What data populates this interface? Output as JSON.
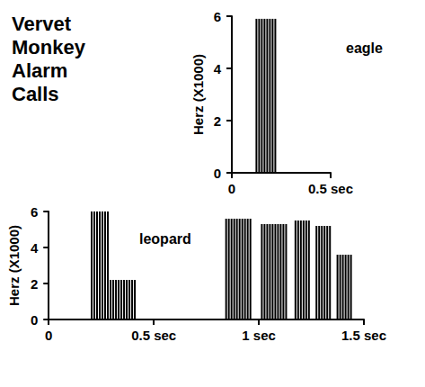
{
  "title": "Vervet Monkey Alarm Calls",
  "chart_data": [
    {
      "type": "spectrogram",
      "title": "eagle",
      "ylabel": "Herz (X1000)",
      "xlim": [
        0,
        0.5
      ],
      "xticks": [
        0,
        {
          "value": 0.5,
          "label": "0.5 sec"
        }
      ],
      "ylim": [
        0,
        6
      ],
      "yticks": [
        0,
        2,
        4,
        6
      ],
      "grid": false,
      "color": "#000000",
      "bursts": [
        {
          "start": 0.12,
          "end": 0.23,
          "low": 0,
          "high": 5.9
        }
      ]
    },
    {
      "type": "spectrogram",
      "title": "leopard",
      "ylabel": "Herz (X1000)",
      "xlim": [
        0,
        1.5
      ],
      "xticks": [
        0,
        {
          "value": 0.5,
          "label": "0.5 sec"
        },
        {
          "value": 1,
          "label": "1 sec"
        },
        {
          "value": 1.5,
          "label": "1.5 sec"
        }
      ],
      "ylim": [
        0,
        6
      ],
      "yticks": [
        0,
        2,
        4,
        6
      ],
      "grid": false,
      "color": "#000000",
      "bursts": [
        {
          "start": 0.2,
          "end": 0.29,
          "low": 0,
          "high": 6
        },
        {
          "start": 0.29,
          "end": 0.42,
          "low": 0,
          "high": 2.2
        },
        {
          "start": 0.84,
          "end": 0.97,
          "low": 0,
          "high": 5.6
        },
        {
          "start": 1.01,
          "end": 1.13,
          "low": 0,
          "high": 5.3
        },
        {
          "start": 1.17,
          "end": 1.24,
          "low": 0,
          "high": 5.5
        },
        {
          "start": 1.27,
          "end": 1.35,
          "low": 0,
          "high": 5.2
        },
        {
          "start": 1.37,
          "end": 1.45,
          "low": 0,
          "high": 3.6
        }
      ]
    }
  ]
}
